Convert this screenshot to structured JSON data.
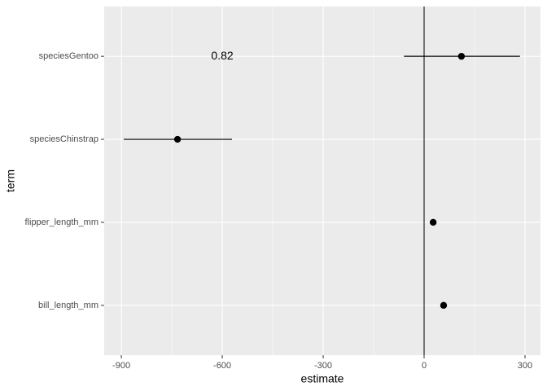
{
  "chart_data": {
    "type": "pointrange",
    "x_label": "estimate",
    "y_label": "term",
    "categories": [
      "bill_length_mm",
      "flipper_length_mm",
      "speciesChinstrap",
      "speciesGentoo"
    ],
    "series": [
      {
        "color": "#000000",
        "values": [
          58,
          27,
          -733,
          111
        ],
        "lower": [
          53,
          22,
          -893,
          -60
        ],
        "upper": [
          63,
          32,
          -571,
          285
        ]
      }
    ],
    "xlim": [
      -951,
      346
    ],
    "xticks": [
      -900,
      -600,
      -300,
      0,
      300
    ],
    "xminor": [
      -750,
      -450,
      -150,
      150
    ],
    "vline": 0,
    "annotations": [
      {
        "text": "0.82",
        "x": -600,
        "y": "speciesGentoo"
      }
    ],
    "grid": true
  }
}
